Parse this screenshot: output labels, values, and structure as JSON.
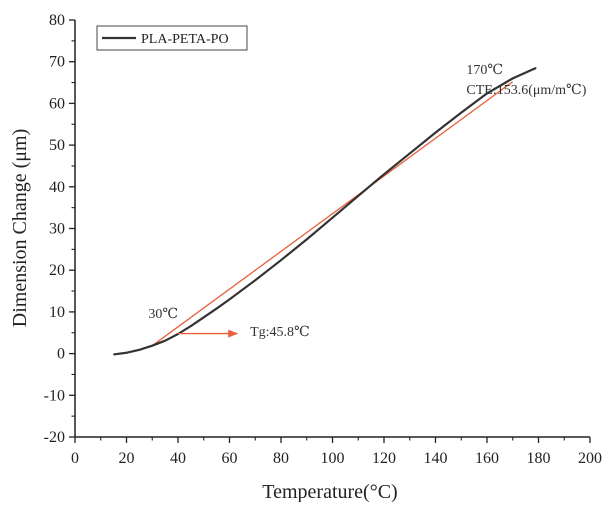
{
  "chart_data": {
    "type": "line",
    "xlabel": "Temperature(°C)",
    "ylabel": "Dimension Change (μm)",
    "xlim": [
      0,
      200
    ],
    "ylim": [
      -20,
      80
    ],
    "x_ticks": [
      0,
      20,
      40,
      60,
      80,
      100,
      120,
      140,
      160,
      180,
      200
    ],
    "y_ticks": [
      -20,
      -10,
      0,
      10,
      20,
      30,
      40,
      50,
      60,
      70,
      80
    ],
    "grid": false,
    "legend": {
      "position": "top-left",
      "entries": [
        "PLA-PETA-PO"
      ]
    },
    "series": [
      {
        "name": "PLA-PETA-PO",
        "color": "#333333",
        "x": [
          15,
          20,
          25,
          30,
          35,
          40,
          45,
          50,
          55,
          60,
          70,
          80,
          90,
          100,
          110,
          120,
          130,
          140,
          150,
          160,
          170,
          179
        ],
        "y": [
          -0.2,
          0.2,
          0.9,
          1.9,
          3.1,
          4.7,
          6.6,
          8.7,
          10.8,
          13.0,
          17.6,
          22.4,
          27.4,
          32.6,
          37.8,
          43.0,
          48.0,
          53.0,
          57.8,
          62.4,
          66.0,
          68.5
        ]
      }
    ],
    "tangent_line": {
      "color": "#e8603c",
      "x": [
        30,
        170
      ],
      "y": [
        1.9,
        65.2
      ]
    },
    "annotations": [
      {
        "label": "30℃",
        "x": 28.5,
        "y": 8.5,
        "color": "#333333"
      },
      {
        "label": "170℃",
        "x": 152,
        "y": 67.0,
        "color": "#333333"
      },
      {
        "label": "CTE:153.6(μm/m℃)",
        "x": 152,
        "y": 62.2,
        "color": "#333333"
      },
      {
        "label": "Tg:45.8℃",
        "x": 68,
        "y": 4.2,
        "color": "#333333"
      }
    ],
    "arrow": {
      "color": "#e8603c",
      "x": [
        40,
        63
      ],
      "y": [
        4.8,
        4.8
      ]
    }
  }
}
